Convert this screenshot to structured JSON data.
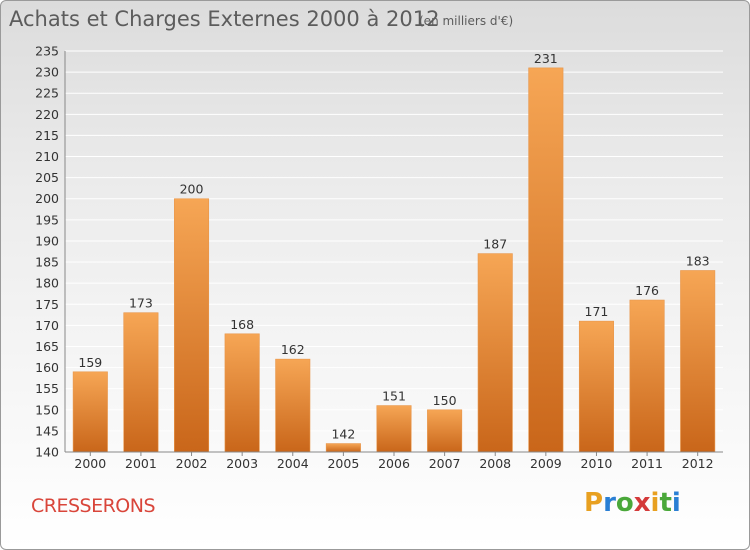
{
  "header": {
    "title": "Achats et Charges Externes 2000 à 2012",
    "unit": "(en milliers d'€)"
  },
  "footer": {
    "town": "CRESSERONS",
    "logo": "Proxiti",
    "logo_colors": [
      "#e8a020",
      "#2a7fd4",
      "#4aa83a",
      "#d43a3a",
      "#e8a020",
      "#4aa83a",
      "#2a7fd4"
    ]
  },
  "colors": {
    "bar_light": "#f6a655",
    "bar_dark": "#c9661a",
    "axis_text": "#333333",
    "grid": "#ffffff"
  },
  "chart_data": {
    "type": "bar",
    "title": "Achats et Charges Externes 2000 à 2012",
    "categories": [
      "2000",
      "2001",
      "2002",
      "2003",
      "2004",
      "2005",
      "2006",
      "2007",
      "2008",
      "2009",
      "2010",
      "2011",
      "2012"
    ],
    "values": [
      159,
      173,
      200,
      168,
      162,
      142,
      151,
      150,
      187,
      231,
      171,
      176,
      183
    ],
    "xlabel": "",
    "ylabel": "",
    "ylim": [
      140,
      235
    ],
    "ytick_step": 5,
    "grid": true,
    "legend": "none"
  }
}
